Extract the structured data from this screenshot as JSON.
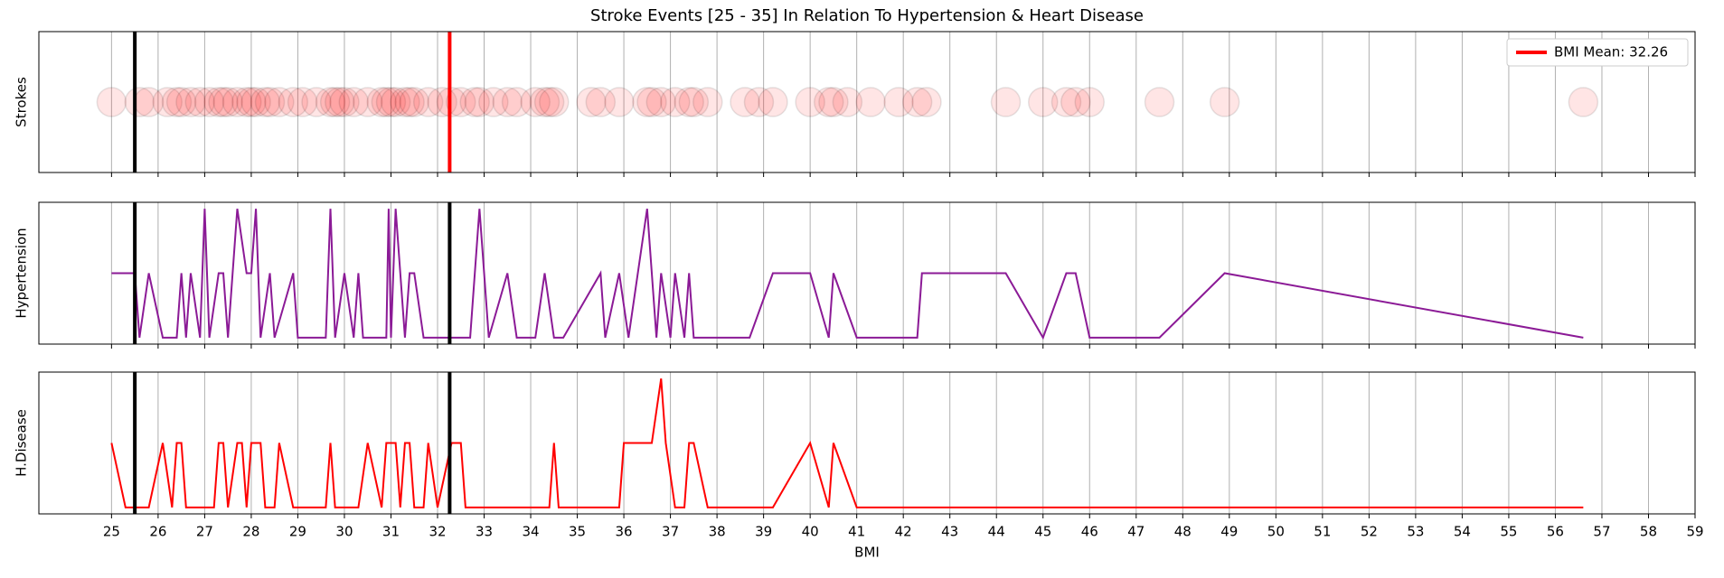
{
  "chart_data": [
    {
      "type": "scatter",
      "title": "Stroke Events [25 - 35] In Relation To Hypertension & Heart Disease",
      "ylabel": "Strokes",
      "x": [
        25,
        25.6,
        25.8,
        26.2,
        26.4,
        26.5,
        26.7,
        26.9,
        27.1,
        27.3,
        27.4,
        27.5,
        27.7,
        27.9,
        28.0,
        28.1,
        28.3,
        28.4,
        28.6,
        28.9,
        29.1,
        29.4,
        29.7,
        29.8,
        29.9,
        30.0,
        30.2,
        30.5,
        30.8,
        30.9,
        31.0,
        31.1,
        31.3,
        31.4,
        31.5,
        31.8,
        32.1,
        32.3,
        32.5,
        32.8,
        32.9,
        33.2,
        33.5,
        33.7,
        34.1,
        34.3,
        34.4,
        34.5,
        35.3,
        35.5,
        35.9,
        36.5,
        36.6,
        36.8,
        37.1,
        37.4,
        37.5,
        37.8,
        38.6,
        38.9,
        39.2,
        40.0,
        40.4,
        40.5,
        40.8,
        41.3,
        41.9,
        42.3,
        42.5,
        44.2,
        45.0,
        45.5,
        45.7,
        46.0,
        47.5,
        48.9,
        56.6
      ],
      "values": [
        1,
        1,
        1,
        1,
        1,
        1,
        1,
        1,
        1,
        1,
        1,
        1,
        1,
        1,
        1,
        1,
        1,
        1,
        1,
        1,
        1,
        1,
        1,
        1,
        1,
        1,
        1,
        1,
        1,
        1,
        1,
        1,
        1,
        1,
        1,
        1,
        1,
        1,
        1,
        1,
        1,
        1,
        1,
        1,
        1,
        1,
        1,
        1,
        1,
        1,
        1,
        1,
        1,
        1,
        1,
        1,
        1,
        1,
        1,
        1,
        1,
        1,
        1,
        1,
        1,
        1,
        1,
        1,
        1,
        1,
        1,
        1,
        1,
        1,
        1,
        1,
        1
      ],
      "color": "#ff0000",
      "ylim": [
        0,
        2
      ],
      "xlim": [
        23.44,
        59
      ],
      "xticks": [
        25,
        26,
        27,
        28,
        29,
        30,
        31,
        32,
        33,
        34,
        35,
        36,
        37,
        38,
        39,
        40,
        41,
        42,
        43,
        44,
        45,
        46,
        47,
        48,
        49,
        50,
        51,
        52,
        53,
        54,
        55,
        56,
        57,
        58,
        59
      ],
      "grid": true,
      "reference_line": {
        "value": 25.5,
        "color": "#000000"
      },
      "mean_line": {
        "name": "BMI Mean: 32.26",
        "value": 32.26,
        "color": "#ff0000"
      },
      "legend": "upper right"
    },
    {
      "type": "line",
      "ylabel": "Hypertension",
      "color": "#8b1a96",
      "x": [
        25.0,
        25.5,
        25.6,
        25.8,
        26.1,
        26.4,
        26.5,
        26.6,
        26.7,
        26.9,
        27.0,
        27.1,
        27.3,
        27.4,
        27.5,
        27.7,
        27.9,
        28.0,
        28.1,
        28.2,
        28.4,
        28.5,
        28.9,
        29.0,
        29.6,
        29.7,
        29.8,
        30.0,
        30.2,
        30.3,
        30.4,
        30.9,
        30.95,
        31.0,
        31.1,
        31.3,
        31.4,
        31.5,
        31.7,
        32.7,
        32.9,
        33.1,
        33.5,
        33.7,
        34.1,
        34.3,
        34.5,
        34.7,
        35.5,
        35.6,
        35.9,
        36.1,
        36.5,
        36.7,
        36.8,
        37.0,
        37.1,
        37.3,
        37.4,
        37.5,
        38.7,
        39.2,
        40.0,
        40.4,
        40.5,
        41.0,
        42.3,
        42.4,
        44.2,
        45.0,
        45.5,
        45.7,
        46.0,
        47.5,
        48.9,
        56.6
      ],
      "values": [
        0.5,
        0.5,
        0,
        0.5,
        0,
        0,
        0.5,
        0,
        0.5,
        0,
        1,
        0,
        0.5,
        0.5,
        0,
        1,
        0.5,
        0.5,
        1,
        0,
        0.5,
        0,
        0.5,
        0,
        0,
        1,
        0,
        0.5,
        0,
        0.5,
        0,
        0,
        1,
        0,
        1,
        0,
        0.5,
        0.5,
        0,
        0,
        1,
        0,
        0.5,
        0,
        0,
        0.5,
        0,
        0,
        0.5,
        0,
        0.5,
        0,
        1,
        0,
        0.5,
        0,
        0.5,
        0,
        0.5,
        0,
        0,
        0.5,
        0.5,
        0,
        0.5,
        0,
        0,
        0.5,
        0.5,
        0,
        0.5,
        0.5,
        0,
        0,
        0.5,
        0
      ],
      "ylim": [
        -0.05,
        1.05
      ],
      "xlim": [
        23.44,
        59
      ],
      "xticks": [
        25,
        26,
        27,
        28,
        29,
        30,
        31,
        32,
        33,
        34,
        35,
        36,
        37,
        38,
        39,
        40,
        41,
        42,
        43,
        44,
        45,
        46,
        47,
        48,
        49,
        50,
        51,
        52,
        53,
        54,
        55,
        56,
        57,
        58,
        59
      ],
      "grid": true,
      "reference_line": {
        "value": 25.5,
        "color": "#000000"
      },
      "mean_line": {
        "value": 32.26,
        "color": "#000000"
      }
    },
    {
      "type": "line",
      "ylabel": "H.Disease",
      "xlabel": "BMI",
      "color": "#ff0000",
      "x": [
        25.0,
        25.3,
        25.8,
        26.1,
        26.3,
        26.4,
        26.5,
        26.6,
        27.2,
        27.3,
        27.4,
        27.5,
        27.7,
        27.8,
        27.9,
        28.0,
        28.2,
        28.3,
        28.5,
        28.6,
        28.9,
        29.6,
        29.7,
        29.8,
        30.3,
        30.5,
        30.8,
        30.9,
        31.1,
        31.2,
        31.3,
        31.4,
        31.5,
        31.7,
        31.8,
        32.0,
        32.3,
        32.5,
        32.6,
        34.4,
        34.5,
        34.6,
        35.9,
        36.0,
        36.6,
        36.8,
        36.9,
        37.1,
        37.3,
        37.4,
        37.5,
        37.8,
        39.2,
        40.0,
        40.4,
        40.5,
        41.0,
        56.6
      ],
      "values": [
        0.5,
        0,
        0,
        0.5,
        0,
        0.5,
        0.5,
        0,
        0,
        0.5,
        0.5,
        0,
        0.5,
        0.5,
        0,
        0.5,
        0.5,
        0,
        0,
        0.5,
        0,
        0,
        0.5,
        0,
        0,
        0.5,
        0,
        0.5,
        0.5,
        0,
        0.5,
        0.5,
        0,
        0,
        0.5,
        0,
        0.5,
        0.5,
        0,
        0,
        0.5,
        0,
        0,
        0.5,
        0.5,
        1,
        0.5,
        0,
        0,
        0.5,
        0.5,
        0,
        0,
        0.5,
        0,
        0.5,
        0,
        0
      ],
      "ylim": [
        -0.05,
        1.05
      ],
      "xlim": [
        23.44,
        59
      ],
      "xticks": [
        25,
        26,
        27,
        28,
        29,
        30,
        31,
        32,
        33,
        34,
        35,
        36,
        37,
        38,
        39,
        40,
        41,
        42,
        43,
        44,
        45,
        46,
        47,
        48,
        49,
        50,
        51,
        52,
        53,
        54,
        55,
        56,
        57,
        58,
        59
      ],
      "grid": true,
      "reference_line": {
        "value": 25.5,
        "color": "#000000"
      },
      "mean_line": {
        "value": 32.26,
        "color": "#000000"
      }
    }
  ]
}
